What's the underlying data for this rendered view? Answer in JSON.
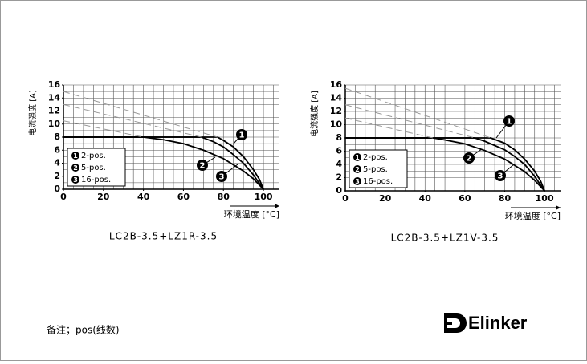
{
  "chart_data": [
    {
      "type": "line",
      "caption": "LC2B-3.5+LZ1R-3.5",
      "x_label": "环境温度 [°C]",
      "y_label": "电流强度 [A]",
      "xlim": [
        0,
        108
      ],
      "ylim": [
        0,
        16
      ],
      "xticks": [
        0,
        20,
        40,
        60,
        80,
        100
      ],
      "yticks": [
        0,
        2,
        4,
        6,
        8,
        10,
        12,
        14,
        16
      ],
      "grid": true,
      "grid_step_x": 5,
      "grid_step_y": 1,
      "series": [
        {
          "name": "2-pos.",
          "marker": "1",
          "color": "#000000",
          "x": [
            0,
            77,
            80,
            85,
            90,
            95,
            98,
            100
          ],
          "values": [
            8,
            8,
            7.5,
            6.5,
            5,
            3,
            1.5,
            0
          ]
        },
        {
          "name": "5-pos.",
          "marker": "2",
          "color": "#000000",
          "x": [
            0,
            69,
            75,
            80,
            85,
            90,
            95,
            100
          ],
          "values": [
            8,
            8,
            7.3,
            6.5,
            5.3,
            4,
            2.2,
            0
          ]
        },
        {
          "name": "16-pos.",
          "marker": "3",
          "color": "#000000",
          "x": [
            0,
            40,
            50,
            60,
            70,
            80,
            90,
            95,
            100
          ],
          "values": [
            8,
            8,
            7.6,
            7,
            6,
            4.7,
            2.8,
            1.6,
            0
          ]
        },
        {
          "color": "#999999",
          "dash": true,
          "x": [
            0,
            77
          ],
          "values": [
            15,
            8
          ]
        },
        {
          "color": "#999999",
          "dash": true,
          "x": [
            0,
            69
          ],
          "values": [
            13,
            8
          ]
        },
        {
          "color": "#999999",
          "dash": true,
          "x": [
            0,
            40
          ],
          "values": [
            10.5,
            8
          ]
        }
      ]
    },
    {
      "type": "line",
      "caption": "LC2B-3.5+LZ1V-3.5",
      "x_label": "环境温度 [°C]",
      "y_label": "电流强度 [A]",
      "xlim": [
        0,
        108
      ],
      "ylim": [
        0,
        16
      ],
      "xticks": [
        0,
        20,
        40,
        60,
        80,
        100
      ],
      "yticks": [
        0,
        2,
        4,
        6,
        8,
        10,
        12,
        14,
        16
      ],
      "grid": true,
      "grid_step_x": 5,
      "grid_step_y": 1,
      "series": [
        {
          "name": "2-pos.",
          "marker": "1",
          "color": "#000000",
          "x": [
            0,
            73,
            80,
            85,
            90,
            95,
            98,
            100
          ],
          "values": [
            8,
            8,
            7.2,
            6.2,
            4.8,
            3,
            1.5,
            0
          ]
        },
        {
          "name": "5-pos.",
          "marker": "2",
          "color": "#000000",
          "x": [
            0,
            65,
            70,
            80,
            85,
            90,
            95,
            100
          ],
          "values": [
            8,
            8,
            7.5,
            6.2,
            5.2,
            4,
            2.2,
            0
          ]
        },
        {
          "name": "16-pos.",
          "marker": "3",
          "color": "#000000",
          "x": [
            0,
            44,
            50,
            60,
            70,
            80,
            90,
            95,
            100
          ],
          "values": [
            8,
            8,
            7.7,
            7.1,
            6.1,
            4.8,
            2.9,
            1.6,
            0
          ]
        },
        {
          "color": "#999999",
          "dash": true,
          "x": [
            0,
            73
          ],
          "values": [
            15.5,
            8
          ]
        },
        {
          "color": "#999999",
          "dash": true,
          "x": [
            0,
            65
          ],
          "values": [
            13,
            8
          ]
        },
        {
          "color": "#999999",
          "dash": true,
          "x": [
            0,
            44
          ],
          "values": [
            11,
            8
          ]
        }
      ]
    }
  ],
  "footer": "备注；pos(线数)",
  "logo": "Elinker"
}
